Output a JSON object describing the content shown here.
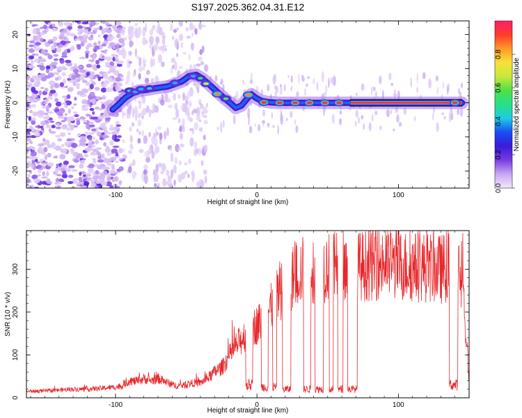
{
  "figure_title": "S197.2025.362.04.31.E12",
  "chart_data": [
    {
      "type": "heatmap",
      "title": "S197.2025.362.04.31.E12",
      "xlabel": "Height of straight line (km)",
      "ylabel": "Frequency (Hz)",
      "xlim": [
        -163,
        150
      ],
      "ylim": [
        -25,
        24
      ],
      "x_ticks": [
        -100,
        0,
        100
      ],
      "y_ticks": [
        20,
        10,
        0,
        -10,
        -20
      ],
      "grid": false,
      "colorbar": {
        "label": "Normalized spectral amplitude",
        "range": [
          0.0,
          1.0
        ],
        "ticks": [
          "0.0",
          "0.2",
          "0.4",
          "0.6",
          "0.8"
        ],
        "colormap": "rainbow",
        "stops": [
          "#f2e8fb",
          "#c8a9f1",
          "#7a3be4",
          "#3a1bd9",
          "#1a4cf4",
          "#1ecbe6",
          "#26e08a",
          "#4ee04a",
          "#c8e83a",
          "#f6e23a",
          "#ff9a2a",
          "#ff3a2a",
          "#ff1f6a"
        ]
      },
      "signal_track": {
        "x": [
          -102,
          -98,
          -93,
          -88,
          -83,
          -78,
          -73,
          -68,
          -63,
          -58,
          -53,
          -48,
          -43,
          -39,
          -35,
          -31,
          -27,
          -23,
          -19,
          -15,
          -11,
          -7,
          -4,
          -1,
          3,
          8,
          15,
          25,
          40,
          65,
          100,
          135,
          145
        ],
        "freq": [
          -2,
          -0.5,
          1.5,
          2.8,
          3.6,
          3.8,
          4.2,
          4.5,
          4.8,
          5.5,
          6.3,
          7.8,
          8.2,
          7.2,
          5.8,
          4.3,
          2.8,
          1.3,
          0,
          -1.5,
          -0.8,
          1.2,
          2.5,
          1.5,
          0.6,
          0.2,
          0,
          0,
          0,
          0,
          0,
          0,
          0
        ]
      },
      "bright_spots": [
        {
          "x": -90,
          "freq": 3.5,
          "amp": 0.45
        },
        {
          "x": -86,
          "freq": 3.2,
          "amp": 0.4
        },
        {
          "x": -82,
          "freq": 4.0,
          "amp": 0.4
        },
        {
          "x": -76,
          "freq": 4.2,
          "amp": 0.45
        },
        {
          "x": -58,
          "freq": 5.8,
          "amp": 0.4
        },
        {
          "x": -45,
          "freq": 7.8,
          "amp": 0.4
        },
        {
          "x": -40,
          "freq": 7.2,
          "amp": 0.55
        },
        {
          "x": -36,
          "freq": 5.6,
          "amp": 0.7
        },
        {
          "x": -28,
          "freq": 2.6,
          "amp": 0.85
        },
        {
          "x": -22,
          "freq": 1.2,
          "amp": 0.6
        },
        {
          "x": -6,
          "freq": 2.3,
          "amp": 0.85
        },
        {
          "x": 5,
          "freq": 0.1,
          "amp": 0.95
        },
        {
          "x": 16,
          "freq": 0,
          "amp": 0.95
        },
        {
          "x": 27,
          "freq": 0,
          "amp": 0.95
        },
        {
          "x": 37,
          "freq": 0,
          "amp": 0.95
        },
        {
          "x": 48,
          "freq": 0,
          "amp": 0.95
        },
        {
          "x": 58,
          "freq": 0,
          "amp": 0.95
        },
        {
          "x": 140,
          "freq": 0,
          "amp": 0.95
        }
      ],
      "continuous_line": {
        "x_start": 66,
        "x_end": 145,
        "freq": 0,
        "amp": 0.95
      }
    },
    {
      "type": "line",
      "xlabel": "Height of straight line (km)",
      "ylabel": "SNR (10 * v/v)",
      "xlim": [
        -163,
        150
      ],
      "ylim": [
        0,
        390
      ],
      "x_ticks": [
        -100,
        0,
        100
      ],
      "y_ticks": [
        0,
        100,
        200,
        300
      ],
      "grid": false,
      "color": "#e8272a",
      "series": [
        {
          "name": "SNR",
          "x": [
            -163,
            -150,
            -140,
            -130,
            -120,
            -110,
            -100,
            -95,
            -90,
            -85,
            -80,
            -75,
            -70,
            -65,
            -60,
            -55,
            -50,
            -45,
            -40,
            -35,
            -30,
            -25,
            -20,
            -15,
            -10,
            -5,
            0,
            5,
            10,
            15,
            20,
            25,
            30,
            35,
            40,
            50,
            60,
            70,
            80,
            90,
            100,
            110,
            120,
            130,
            135,
            140,
            143,
            146,
            150
          ],
          "values": [
            15,
            16,
            18,
            20,
            20,
            22,
            25,
            28,
            40,
            38,
            45,
            40,
            45,
            38,
            30,
            28,
            30,
            35,
            35,
            45,
            60,
            70,
            95,
            120,
            140,
            160,
            170,
            190,
            210,
            240,
            260,
            280,
            295,
            300,
            300,
            305,
            305,
            305,
            310,
            315,
            310,
            305,
            305,
            300,
            305,
            300,
            290,
            240,
            40
          ]
        }
      ],
      "dropouts": [
        {
          "x_from": -8,
          "x_to": -3,
          "level": 30
        },
        {
          "x_from": 3,
          "x_to": 8,
          "level": 25
        },
        {
          "x_from": 11,
          "x_to": 14,
          "level": 25
        },
        {
          "x_from": 18,
          "x_to": 24,
          "level": 20
        },
        {
          "x_from": 33,
          "x_to": 38,
          "level": 20
        },
        {
          "x_from": 41,
          "x_to": 47,
          "level": 20
        },
        {
          "x_from": 51,
          "x_to": 54,
          "level": 20
        },
        {
          "x_from": 57,
          "x_to": 61,
          "level": 20
        },
        {
          "x_from": 64,
          "x_to": 71,
          "level": 20
        },
        {
          "x_from": 136,
          "x_to": 142,
          "level": 30
        }
      ]
    }
  ]
}
